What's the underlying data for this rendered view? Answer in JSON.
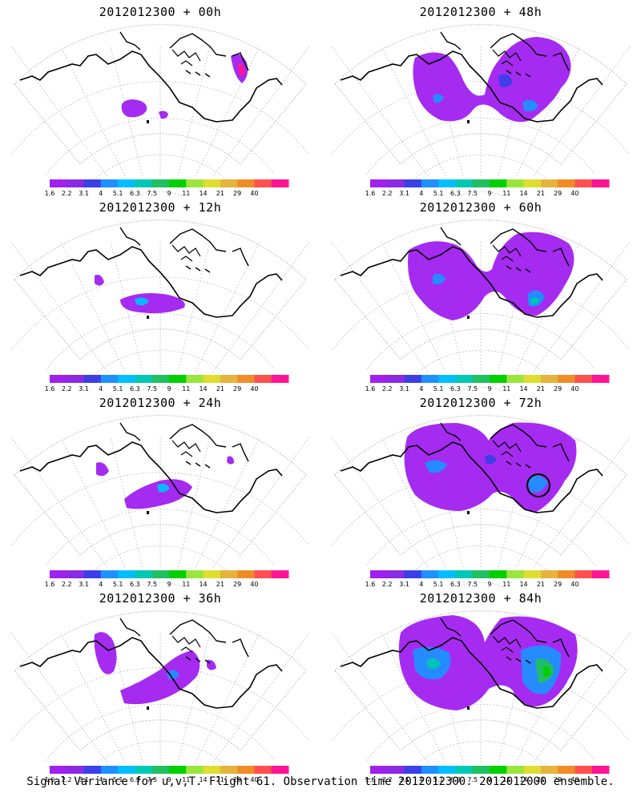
{
  "panels": [
    {
      "title": "2012012300 + 00h"
    },
    {
      "title": "2012012300 + 48h"
    },
    {
      "title": "2012012300 + 12h"
    },
    {
      "title": "2012012300 + 60h"
    },
    {
      "title": "2012012300 + 24h"
    },
    {
      "title": "2012012300 + 72h"
    },
    {
      "title": "2012012300 + 36h"
    },
    {
      "title": "2012012300 + 84h"
    }
  ],
  "colorbar": {
    "labels": [
      "1.6",
      "2.2",
      "3.1",
      "4",
      "5.1",
      "6.3",
      "7.5",
      "9",
      "11",
      "14",
      "21",
      "29",
      "40"
    ],
    "colors": [
      "#a020f0",
      "#8a2be2",
      "#3a3fe8",
      "#1e90ff",
      "#00bfff",
      "#00c8b4",
      "#20c060",
      "#00d000",
      "#9ae63c",
      "#dede30",
      "#e6b43c",
      "#f08c28",
      "#ff5050",
      "#ff1493"
    ]
  },
  "footer": "Signal Variance for u,v,T. Flight 61. Observation time 2012012300. 2012012000 ensemble."
}
